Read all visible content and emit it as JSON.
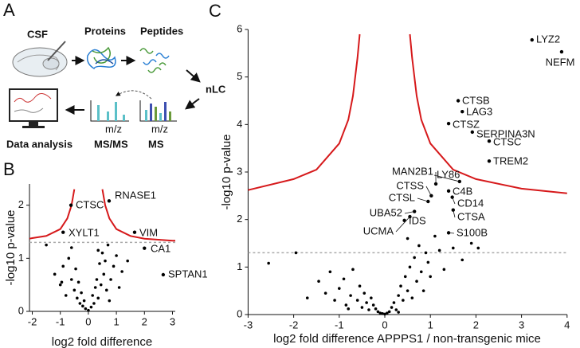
{
  "panel_a": {
    "label": "A",
    "steps": {
      "csf": "CSF",
      "proteins": "Proteins",
      "peptides": "Peptides",
      "lc": "nLC",
      "msms": "MS/MS",
      "ms": "MS",
      "analysis": "Data analysis"
    },
    "axis_labels": [
      "m/z",
      "m/z"
    ]
  },
  "chart_data": [
    {
      "type": "scatter",
      "panel_label": "B",
      "xlabel": "log2 fold difference",
      "ylabel": "-log10 p-value",
      "xlim": [
        -2.1,
        3.1
      ],
      "ylim": [
        0,
        2.4
      ],
      "xticks": [
        -2,
        -1,
        0,
        1,
        2,
        3
      ],
      "yticks": [
        0,
        1,
        2
      ],
      "color": "#000000",
      "curve_color": "#d6191b",
      "threshold": {
        "y": 1.3,
        "color": "#aaaaaa",
        "style": "dashed"
      },
      "x": [
        -1.5,
        -1.2,
        -1.0,
        -0.9,
        -0.8,
        -0.7,
        -0.6,
        -0.5,
        -0.45,
        -0.4,
        -0.35,
        -0.3,
        -0.25,
        -0.2,
        -0.15,
        -0.1,
        0.0,
        0.1,
        0.15,
        0.2,
        0.25,
        0.3,
        0.35,
        0.4,
        0.45,
        0.5,
        0.55,
        0.6,
        0.65,
        0.7,
        0.8,
        0.9,
        1.0,
        1.1,
        1.2,
        1.4,
        -0.95,
        -0.6,
        0.35,
        0.75
      ],
      "y": [
        1.25,
        0.7,
        0.5,
        0.85,
        0.3,
        1.0,
        0.6,
        0.4,
        0.8,
        0.25,
        0.55,
        0.15,
        0.35,
        0.1,
        0.2,
        0.05,
        0.02,
        0.08,
        0.3,
        0.15,
        0.45,
        0.6,
        0.25,
        0.9,
        0.5,
        1.1,
        0.7,
        0.95,
        0.4,
        1.25,
        0.6,
        0.85,
        1.05,
        0.45,
        0.75,
        0.95,
        0.55,
        1.2,
        1.15,
        0.2
      ],
      "highlights": {
        "labels": [
          "CTSC",
          "RNASE1",
          "XYLT1",
          "VIM",
          "CA1",
          "SPTAN1"
        ],
        "x": [
          -0.62,
          0.74,
          -0.9,
          1.65,
          2.0,
          2.67
        ],
        "y": [
          2.0,
          2.08,
          1.49,
          1.49,
          1.19,
          0.69
        ]
      },
      "curves": [
        {
          "x": [
            -2.1,
            -2,
            -1.5,
            -1,
            -0.75,
            -0.6,
            -0.5
          ],
          "y": [
            1.37,
            1.38,
            1.42,
            1.55,
            1.75,
            2.0,
            2.3
          ]
        },
        {
          "x": [
            0.5,
            0.6,
            0.75,
            1,
            1.5,
            2,
            3,
            3.1
          ],
          "y": [
            2.3,
            2.0,
            1.75,
            1.55,
            1.42,
            1.37,
            1.33,
            1.33
          ]
        }
      ]
    },
    {
      "type": "scatter",
      "panel_label": "C",
      "xlabel": "log2 fold difference APPPS1 / non-transgenic mice",
      "ylabel": "-log10 p-value",
      "xlim": [
        -3,
        4
      ],
      "ylim": [
        0,
        6
      ],
      "xticks": [
        -3,
        -2,
        -1,
        0,
        1,
        2,
        3,
        4
      ],
      "yticks": [
        0,
        1,
        2,
        3,
        4,
        5,
        6
      ],
      "color": "#000000",
      "curve_color": "#d6191b",
      "threshold": {
        "y": 1.3,
        "color": "#aaaaaa",
        "style": "dashed"
      },
      "x": [
        -2.55,
        -1.95,
        -1.7,
        -1.45,
        -1.3,
        -1.2,
        -1.1,
        -1.0,
        -0.9,
        -0.85,
        -0.75,
        -0.7,
        -0.6,
        -0.55,
        -0.5,
        -0.45,
        -0.4,
        -0.35,
        -0.3,
        -0.25,
        -0.2,
        -0.15,
        -0.1,
        -0.05,
        0.0,
        0.05,
        0.1,
        0.15,
        0.2,
        0.25,
        0.3,
        0.35,
        0.4,
        0.45,
        0.5,
        0.55,
        0.6,
        0.65,
        0.7,
        0.75,
        0.8,
        0.85,
        0.9,
        0.95,
        1.0,
        1.1,
        1.2,
        1.3,
        1.5,
        1.7,
        1.9,
        2.05,
        -0.8,
        0.3,
        0.5
      ],
      "y": [
        1.08,
        1.3,
        0.35,
        0.7,
        0.45,
        0.9,
        0.3,
        0.55,
        0.75,
        0.2,
        0.4,
        0.95,
        0.3,
        0.6,
        0.15,
        0.45,
        0.25,
        0.1,
        0.35,
        0.2,
        0.12,
        0.06,
        0.03,
        0.02,
        0.01,
        0.03,
        0.06,
        0.15,
        0.25,
        0.1,
        0.4,
        0.6,
        0.3,
        0.8,
        0.5,
        1.0,
        0.35,
        1.2,
        0.7,
        1.45,
        0.9,
        0.5,
        1.3,
        1.1,
        0.8,
        1.65,
        1.35,
        0.95,
        1.4,
        1.15,
        1.5,
        1.4,
        0.12,
        0.05,
        1.6
      ],
      "highlights": {
        "labels": [
          "LYZ2",
          "NEFM",
          "CTSB",
          "LAG3",
          "CTSZ",
          "SERPINA3N",
          "CTSC",
          "TREM2",
          "LY86",
          "MAN2B1",
          "C4B",
          "CTSS",
          "CTSL",
          "CD14",
          "UBA52",
          "CTSA",
          "IDS",
          "UCMA",
          "S100B"
        ],
        "x": [
          3.23,
          3.88,
          1.61,
          1.7,
          1.4,
          1.92,
          2.29,
          2.29,
          1.64,
          1.12,
          1.4,
          1.02,
          0.95,
          1.48,
          0.65,
          1.5,
          0.43,
          0.55,
          1.4
        ],
        "y": [
          5.78,
          5.53,
          4.5,
          4.27,
          4.02,
          3.84,
          3.65,
          3.23,
          2.8,
          2.75,
          2.6,
          2.5,
          2.38,
          2.47,
          2.17,
          2.2,
          1.98,
          2.06,
          1.72
        ]
      },
      "curves": [
        {
          "x": [
            -3,
            -2,
            -1.5,
            -1,
            -0.8,
            -0.7,
            -0.6,
            -0.55
          ],
          "y": [
            2.62,
            2.85,
            3.05,
            3.6,
            4.1,
            4.6,
            5.4,
            5.9
          ]
        },
        {
          "x": [
            0.55,
            0.6,
            0.7,
            0.8,
            1,
            1.5,
            2,
            3,
            4
          ],
          "y": [
            5.9,
            5.4,
            4.6,
            4.1,
            3.6,
            3.05,
            2.85,
            2.65,
            2.55
          ]
        }
      ]
    }
  ]
}
